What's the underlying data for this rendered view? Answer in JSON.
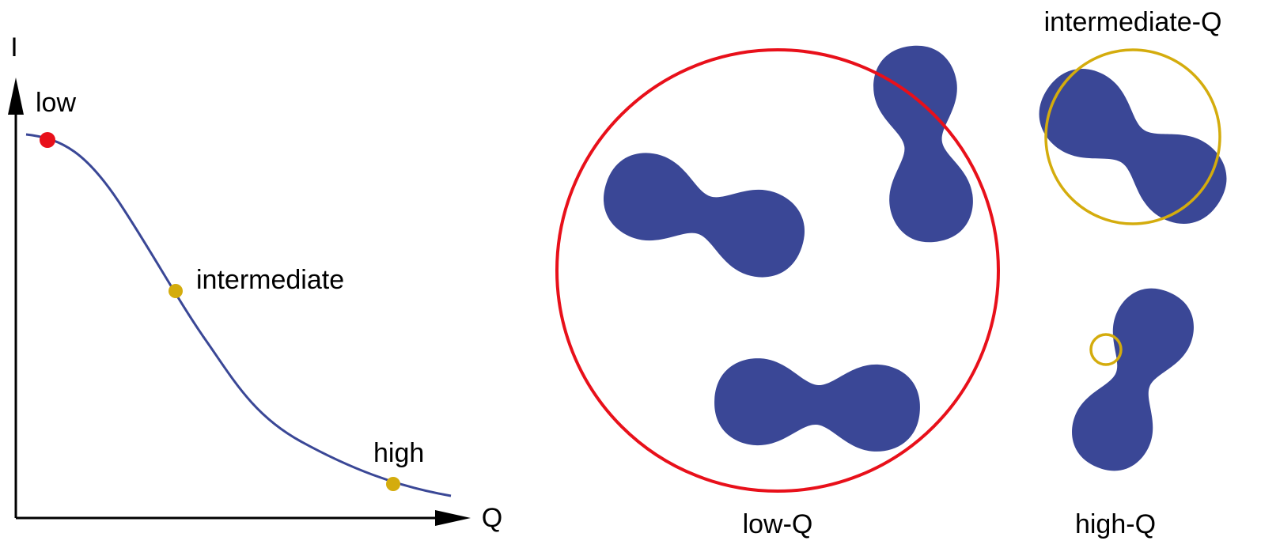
{
  "plot": {
    "y_axis_label": "I",
    "x_axis_label": "Q",
    "points": [
      {
        "label": "low"
      },
      {
        "label": "intermediate"
      },
      {
        "label": "high"
      }
    ]
  },
  "panels": [
    {
      "label": "low-Q"
    },
    {
      "label": "intermediate-Q"
    },
    {
      "label": "high-Q"
    }
  ]
}
